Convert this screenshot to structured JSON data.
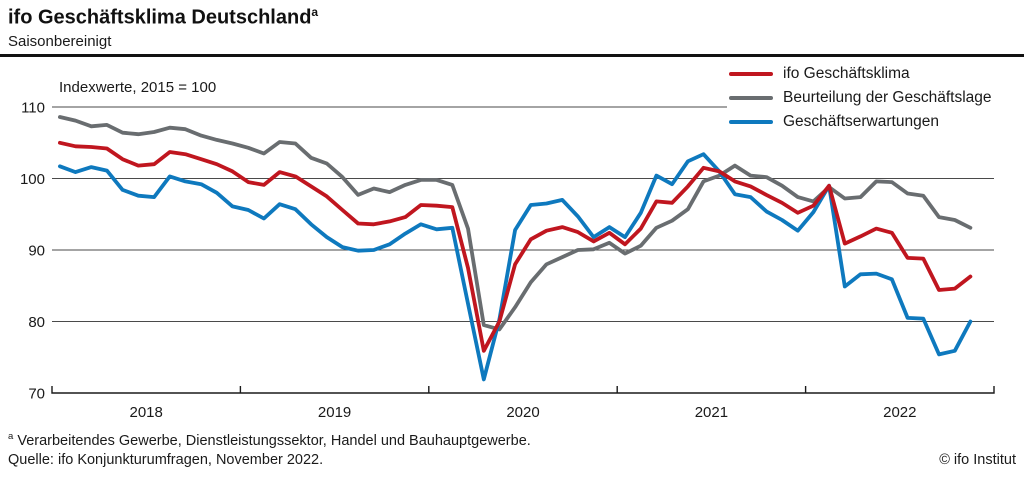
{
  "page": {
    "title": "ifo Geschäftsklima Deutschland",
    "title_sup": "a",
    "subtitle": "Saisonbereinigt",
    "footnote_sup": "a",
    "footnote_text": " Verarbeitendes Gewerbe, Dienstleistungssektor, Handel und Bauhauptgewerbe.",
    "source": "Quelle: ifo Konjunkturumfragen, November 2022.",
    "copyright": "© ifo Institut"
  },
  "chart_data": {
    "type": "line",
    "title": "ifo Geschäftsklima Deutschland",
    "subtitle": "Saisonbereinigt",
    "annotation": "Indexwerte, 2015 = 100",
    "x_frequency": "monthly",
    "x_start": "2018-01",
    "x_end": "2022-11",
    "x_tick_labels": [
      "2018",
      "2019",
      "2020",
      "2021",
      "2022"
    ],
    "y_ticks": [
      110,
      100,
      90,
      80,
      70
    ],
    "ylim": [
      70,
      110
    ],
    "grid": "horizontal",
    "legend_position": "top-right",
    "colors": {
      "klima": "#c0161f",
      "lage": "#696d70",
      "erwartungen": "#0e79be",
      "gridline": "#4a4a4a",
      "axis": "#1a1a1a"
    },
    "series": [
      {
        "name": "ifo Geschäftsklima",
        "color": "#c0161f",
        "values": [
          105.0,
          104.5,
          104.4,
          104.2,
          102.7,
          101.8,
          102.0,
          103.7,
          103.4,
          102.7,
          102.0,
          101.0,
          99.5,
          99.1,
          100.9,
          100.3,
          98.9,
          97.5,
          95.6,
          93.7,
          93.6,
          94.0,
          94.6,
          96.3,
          96.2,
          96.0,
          87.5,
          75.9,
          80.0,
          88.0,
          91.5,
          92.7,
          93.2,
          92.5,
          91.2,
          92.4,
          90.8,
          93.0,
          96.8,
          96.6,
          98.9,
          101.5,
          101.0,
          99.6,
          98.9,
          97.7,
          96.6,
          95.2,
          96.2,
          99.0,
          90.9,
          91.9,
          93.0,
          92.4,
          88.9,
          88.8,
          84.4,
          84.6,
          86.3
        ]
      },
      {
        "name": "Beurteilung der Geschäftslage",
        "color": "#696d70",
        "values": [
          108.6,
          108.1,
          107.3,
          107.5,
          106.4,
          106.2,
          106.5,
          107.1,
          106.9,
          106.0,
          105.4,
          104.9,
          104.3,
          103.5,
          105.1,
          104.9,
          102.9,
          102.1,
          100.2,
          97.7,
          98.6,
          98.1,
          99.1,
          99.8,
          99.8,
          99.1,
          93.0,
          79.5,
          78.9,
          82.0,
          85.5,
          88.0,
          89.0,
          90.0,
          90.1,
          91.0,
          89.5,
          90.6,
          93.1,
          94.1,
          95.7,
          99.6,
          100.4,
          101.8,
          100.4,
          100.2,
          99.0,
          97.4,
          96.8,
          98.8,
          97.2,
          97.4,
          99.6,
          99.5,
          97.9,
          97.6,
          94.6,
          94.2,
          93.1
        ]
      },
      {
        "name": "Geschäftserwartungen",
        "color": "#0e79be",
        "values": [
          101.7,
          100.9,
          101.6,
          101.1,
          98.4,
          97.6,
          97.4,
          100.3,
          99.6,
          99.2,
          98.0,
          96.1,
          95.6,
          94.4,
          96.4,
          95.7,
          93.6,
          91.8,
          90.4,
          89.9,
          90.0,
          90.8,
          92.3,
          93.6,
          92.9,
          93.1,
          82.5,
          71.9,
          80.3,
          92.8,
          96.3,
          96.5,
          97.0,
          94.7,
          91.8,
          93.2,
          91.8,
          95.2,
          100.4,
          99.2,
          102.4,
          103.4,
          101.0,
          97.8,
          97.4,
          95.4,
          94.2,
          92.7,
          95.3,
          99.0,
          84.9,
          86.6,
          86.7,
          85.9,
          80.5,
          80.4,
          75.4,
          75.9,
          80.0
        ]
      }
    ]
  }
}
